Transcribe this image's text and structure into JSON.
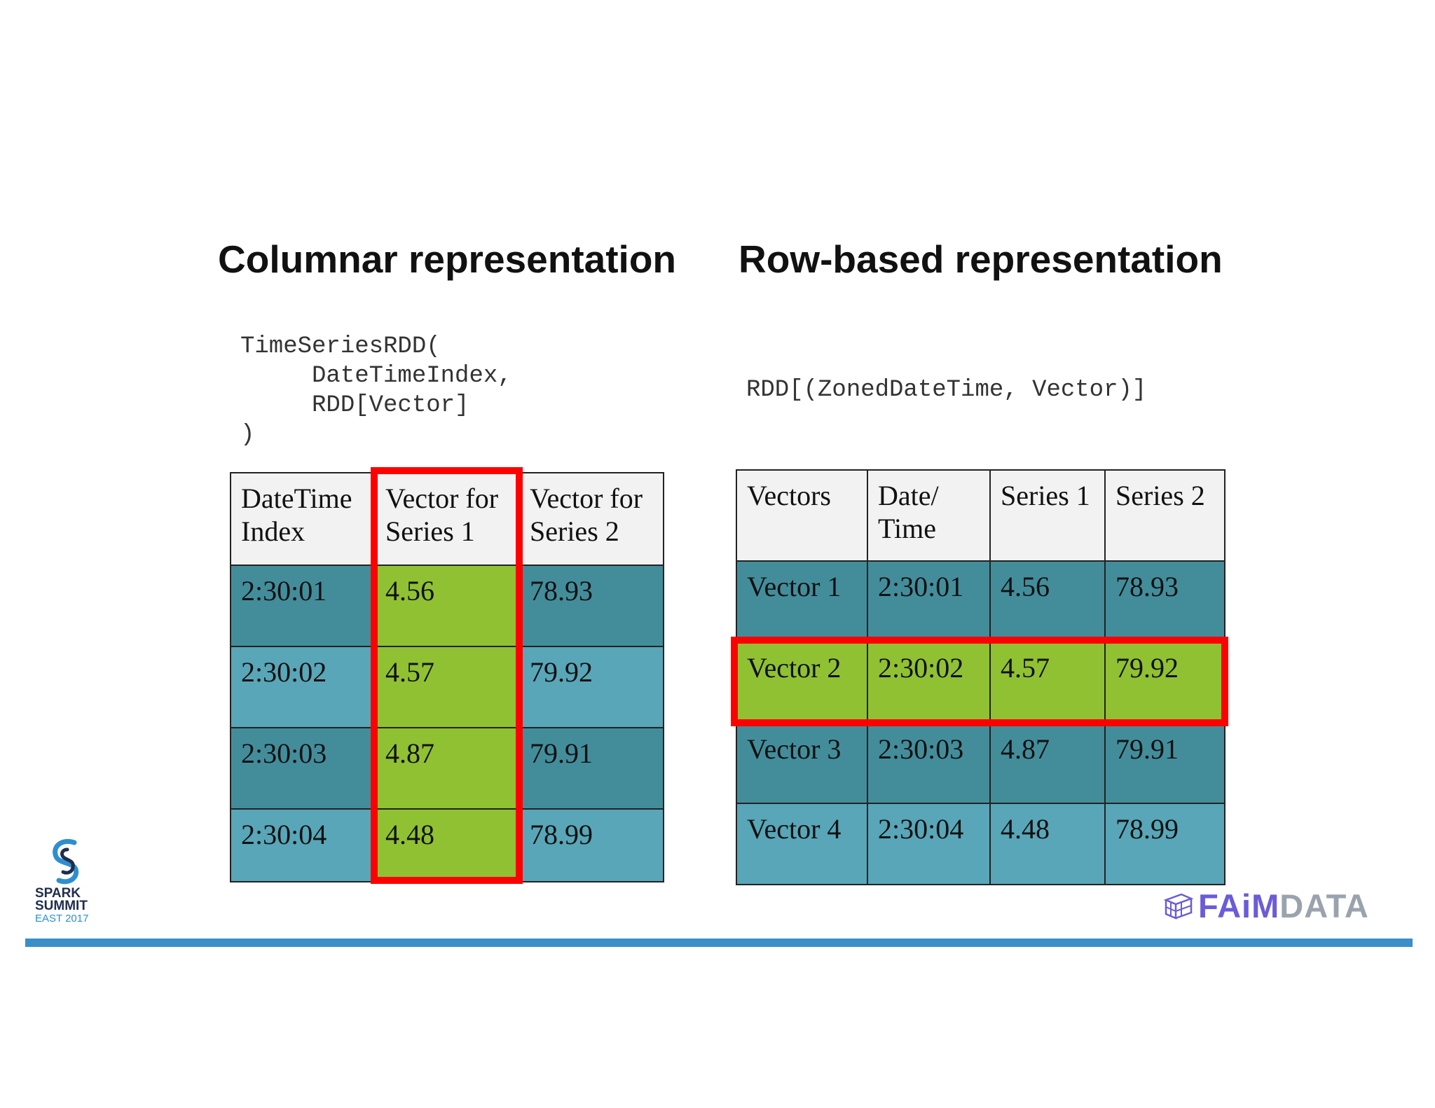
{
  "slide": {
    "left": {
      "heading": "Columnar representation",
      "code": "TimeSeriesRDD(\n     DateTimeIndex,\n     RDD[Vector]\n)",
      "table": {
        "headers": [
          [
            "DateTime",
            "Index"
          ],
          [
            "Vector for",
            "Series 1"
          ],
          [
            "Vector for",
            "Series 2"
          ]
        ],
        "rows": [
          [
            "2:30:01",
            "4.56",
            "78.93"
          ],
          [
            "2:30:02",
            "4.57",
            "79.92"
          ],
          [
            "2:30:03",
            "4.87",
            "79.91"
          ],
          [
            "2:30:04",
            "4.48",
            "78.99"
          ]
        ]
      }
    },
    "right": {
      "heading": "Row-based representation",
      "code": "RDD[(ZonedDateTime, Vector)]",
      "table": {
        "headers": [
          [
            "Vectors"
          ],
          [
            "Date/",
            "Time"
          ],
          [
            "Series 1"
          ],
          [
            "Series 2"
          ]
        ],
        "rows": [
          [
            "Vector 1",
            "2:30:01",
            "4.56",
            "78.93"
          ],
          [
            "Vector 2",
            "2:30:02",
            "4.57",
            "79.92"
          ],
          [
            "Vector 3",
            "2:30:03",
            "4.87",
            "79.91"
          ],
          [
            "Vector 4",
            "2:30:04",
            "4.48",
            "78.99"
          ]
        ]
      }
    }
  },
  "logos": {
    "spark": {
      "line1": "SPARK",
      "line2": "SUMMIT",
      "line3": "EAST 2017"
    },
    "faimdata": {
      "part1": "FAiM",
      "part2": "DATA"
    }
  },
  "colors": {
    "dark_teal": "#438d9b",
    "light_teal": "#58a6b8",
    "green": "#90c133",
    "highlight_red": "#ff0000",
    "bottom_bar": "#3a8fc8"
  }
}
